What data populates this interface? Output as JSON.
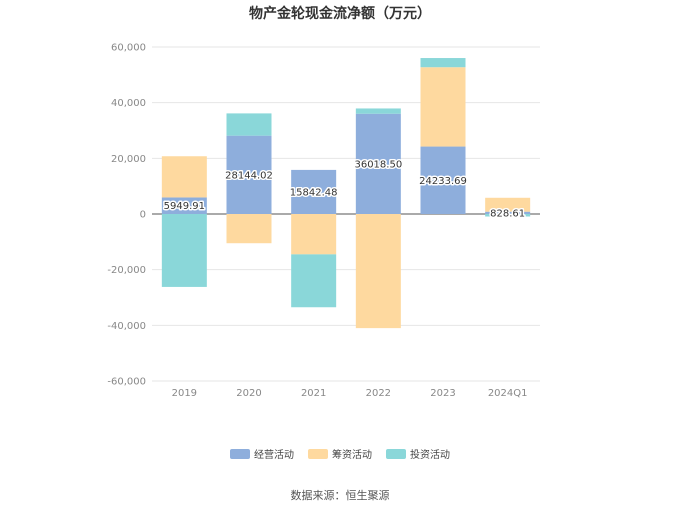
{
  "chart_data": {
    "type": "bar",
    "stacked": true,
    "title": "物产金轮现金流净额（万元）",
    "categories": [
      "2019",
      "2020",
      "2021",
      "2022",
      "2023",
      "2024Q1"
    ],
    "ylim": [
      -60000,
      60000
    ],
    "yticks": [
      60000,
      40000,
      20000,
      0,
      -20000,
      -40000,
      -60000
    ],
    "ytick_labels": [
      "60,000",
      "40,000",
      "20,000",
      "0",
      "-20,000",
      "-40,000",
      "-60,000"
    ],
    "grid": true,
    "legend": "bottom",
    "series": [
      {
        "name": "经营活动",
        "color": "#8eaedc",
        "values": [
          5949.91,
          28144.02,
          15842.48,
          36018.5,
          24233.69,
          828.61
        ]
      },
      {
        "name": "筹资活动",
        "color": "#fed99f",
        "values": [
          14800,
          -10500,
          -14500,
          -41000,
          28500,
          5000
        ]
      },
      {
        "name": "投资活动",
        "color": "#8ad7d9",
        "values": [
          -26200,
          8000,
          -19000,
          1900,
          3300,
          -900
        ]
      }
    ],
    "data_labels": [
      "5949.91",
      "28144.02",
      "15842.48",
      "36018.50",
      "24233.69",
      "828.61"
    ]
  },
  "footer": {
    "source": "数据来源：恒生聚源"
  }
}
